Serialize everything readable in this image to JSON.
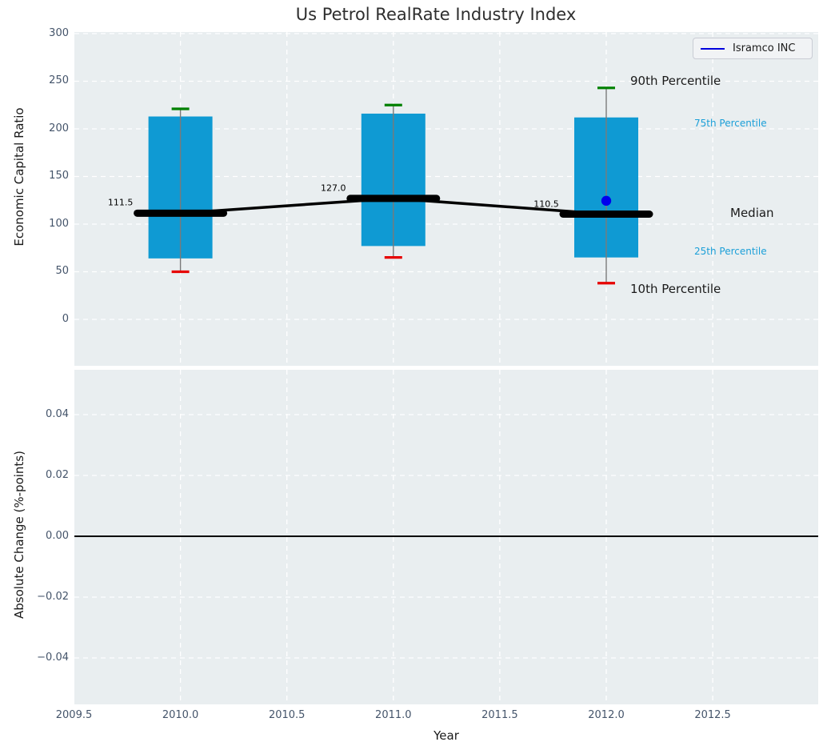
{
  "title": "Us Petrol RealRate Industry Index",
  "legend": {
    "label": "Isramco INC",
    "line_color": "#0000dd"
  },
  "annotations": {
    "p90": "90th Percentile",
    "p75": "75th Percentile",
    "median": "Median",
    "p25": "25th Percentile",
    "p10": "10th Percentile"
  },
  "colors": {
    "plot_bg": "#e9eef0",
    "grid": "#ffffff",
    "bar": "#0f9ad3",
    "whisker": "#7a7a7a",
    "cap_high": "#008000",
    "cap_low": "#e60000",
    "median_line": "#000000",
    "company_point": "#0000ee",
    "zero_line": "#000000",
    "tick_text": "#44546a",
    "annotation_blue": "#1b9fd8"
  },
  "chart_data": [
    {
      "type": "bar",
      "panel": "top",
      "title": "Us Petrol RealRate Industry Index",
      "ylabel": "Economic Capital Ratio",
      "ylim": [
        -49,
        302
      ],
      "xlim": [
        2009.5,
        2013.0
      ],
      "grid": "on",
      "legend_position": "upper right",
      "ytick_values": [
        300,
        250,
        200,
        150,
        100,
        50,
        0
      ],
      "ytick_labels": [
        "300",
        "250",
        "200",
        "150",
        "100",
        "50",
        "0"
      ],
      "categories": [
        2010,
        2011,
        2012
      ],
      "series": [
        {
          "name": "90th Percentile",
          "values": [
            221,
            225,
            243
          ]
        },
        {
          "name": "75th Percentile",
          "values": [
            213,
            216,
            212
          ]
        },
        {
          "name": "Median",
          "values": [
            111.5,
            127.0,
            110.5
          ]
        },
        {
          "name": "25th Percentile",
          "values": [
            64,
            77,
            65
          ]
        },
        {
          "name": "10th Percentile",
          "values": [
            50,
            65,
            38
          ]
        }
      ],
      "median_labels": [
        "111.5",
        "127.0",
        "110.5"
      ],
      "company_point": {
        "name": "Isramco INC",
        "x": 2012,
        "y": 124.5
      }
    },
    {
      "type": "line",
      "panel": "bottom",
      "ylabel": "Absolute Change (%-points)",
      "xlabel": "Year",
      "ylim": [
        -0.055,
        0.055
      ],
      "xlim": [
        2009.5,
        2013.0
      ],
      "grid": "on",
      "ytick_values": [
        0.04,
        0.02,
        0,
        -0.02,
        -0.04
      ],
      "ytick_labels": [
        "0.04",
        "0.02",
        "0.00",
        "−0.02",
        "−0.04"
      ],
      "xtick_values": [
        2009.5,
        2010.0,
        2010.5,
        2011.0,
        2011.5,
        2012.0,
        2012.5
      ],
      "xtick_labels": [
        "2009.5",
        "2010.0",
        "2010.5",
        "2011.0",
        "2011.5",
        "2012.0",
        "2012.5"
      ],
      "zero_line": 0,
      "values": []
    }
  ]
}
